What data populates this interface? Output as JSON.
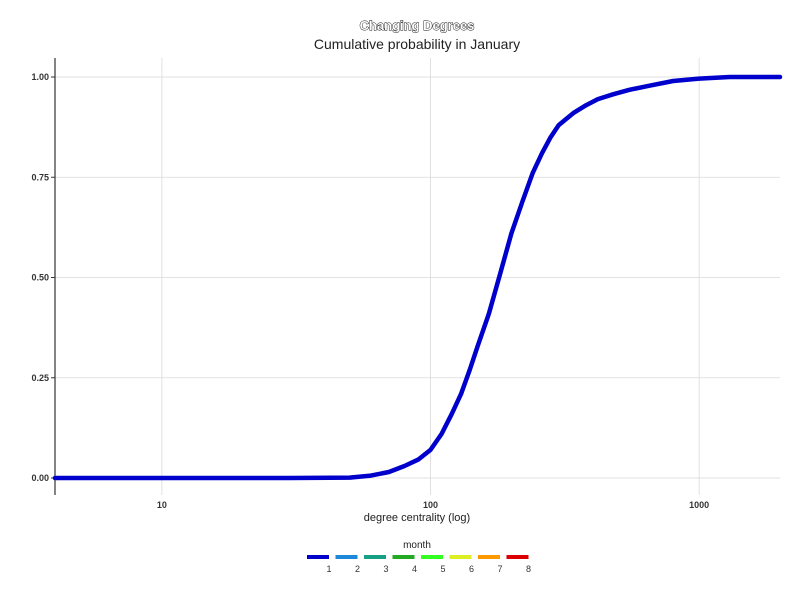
{
  "chart_data": {
    "type": "line",
    "title": "Changing Degrees",
    "subtitle": "Cumulative probability in January",
    "xlabel": "degree centrality (log)",
    "ylabel": "",
    "x_scale": "log10",
    "xlim": [
      4,
      2000
    ],
    "ylim": [
      0,
      1
    ],
    "x_ticks": [
      10,
      100,
      1000
    ],
    "x_tick_labels": [
      "10",
      "100",
      "1000"
    ],
    "y_ticks": [
      0,
      0.25,
      0.5,
      0.75,
      1.0
    ],
    "y_tick_labels": [
      "0.00",
      "0.25",
      "0.50",
      "0.75",
      "1.00"
    ],
    "grid": true,
    "series": [
      {
        "name": "1",
        "color": "#0000CC",
        "x": [
          4,
          10,
          30,
          50,
          60,
          70,
          80,
          90,
          100,
          110,
          120,
          130,
          140,
          150,
          165,
          180,
          200,
          220,
          240,
          260,
          280,
          300,
          340,
          380,
          420,
          480,
          550,
          650,
          800,
          1000,
          1300,
          2000
        ],
        "y": [
          0.0,
          0.0,
          0.0,
          0.001,
          0.006,
          0.015,
          0.03,
          0.046,
          0.07,
          0.11,
          0.16,
          0.21,
          0.27,
          0.33,
          0.41,
          0.5,
          0.61,
          0.69,
          0.76,
          0.81,
          0.85,
          0.88,
          0.91,
          0.93,
          0.945,
          0.957,
          0.968,
          0.978,
          0.99,
          0.996,
          1.0,
          1.0
        ]
      }
    ],
    "legend": {
      "title": "month",
      "position": "bottom",
      "items": [
        {
          "label": "1",
          "color": "#0000CC"
        },
        {
          "label": "2",
          "color": "#1E88D8"
        },
        {
          "label": "3",
          "color": "#17A085"
        },
        {
          "label": "4",
          "color": "#22AA22"
        },
        {
          "label": "5",
          "color": "#33FF22"
        },
        {
          "label": "6",
          "color": "#DDEE22"
        },
        {
          "label": "7",
          "color": "#FF9900"
        },
        {
          "label": "8",
          "color": "#DD0000"
        }
      ]
    }
  }
}
